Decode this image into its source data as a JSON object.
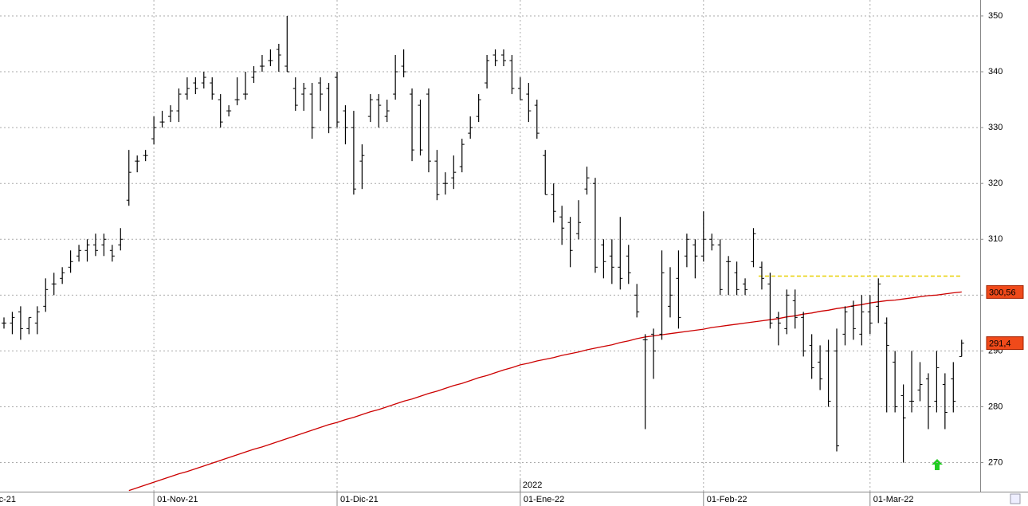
{
  "chart_data": {
    "type": "ohlc",
    "categories": [
      null,
      null,
      null,
      null,
      null,
      null,
      null,
      null,
      null,
      null,
      null,
      null,
      null,
      null,
      null,
      null,
      null,
      null,
      null,
      null,
      null,
      null,
      null,
      null,
      null,
      null,
      null,
      null,
      null,
      null,
      null,
      null,
      null,
      null,
      null,
      null,
      null,
      null,
      null,
      null,
      null,
      null,
      null,
      null,
      null,
      null,
      null,
      null,
      null,
      null,
      null,
      null,
      null,
      null,
      null,
      null,
      null,
      null,
      null,
      null,
      null,
      null,
      null,
      null,
      null,
      null,
      null,
      null,
      null,
      null,
      null,
      null,
      null,
      null,
      null,
      null,
      null,
      null,
      null,
      null,
      null,
      null,
      null,
      null,
      null,
      null,
      null,
      null,
      null,
      null,
      null,
      null,
      null,
      null,
      null,
      null,
      null,
      null,
      null,
      null,
      null,
      null,
      null,
      null,
      null,
      null,
      null,
      null,
      null,
      null,
      null,
      null,
      null,
      null,
      null,
      null
    ],
    "open": [
      295,
      295,
      297,
      294,
      295,
      298,
      302,
      303,
      305,
      307,
      308,
      309,
      309,
      308,
      309,
      317,
      324,
      325,
      328,
      331,
      332,
      333,
      336,
      338,
      338,
      338,
      335,
      333,
      335,
      336,
      339,
      341,
      342,
      344,
      341,
      337,
      336,
      336,
      338,
      337,
      339,
      333,
      330,
      324,
      332,
      335,
      332,
      336,
      341,
      336,
      334,
      336,
      324,
      320,
      321,
      323,
      329,
      332,
      338,
      343,
      343,
      342,
      337,
      336,
      334,
      325,
      318,
      314,
      313,
      311,
      319,
      320,
      309,
      307,
      305,
      307,
      300,
      292,
      293,
      293,
      298,
      303,
      307,
      309,
      307,
      310,
      309,
      306,
      304,
      302,
      306,
      305,
      302,
      296,
      294,
      299,
      296,
      291,
      288,
      290,
      290,
      293,
      298,
      293,
      297,
      298,
      295,
      288,
      282,
      281,
      283,
      285,
      281,
      284,
      285,
      289
    ],
    "high": [
      296,
      297,
      298,
      296,
      298,
      303,
      304,
      305,
      308,
      309,
      310,
      311,
      311,
      309,
      312,
      326,
      325,
      326,
      332,
      333,
      334,
      337,
      339,
      339,
      340,
      339,
      336,
      334,
      339,
      340,
      341,
      343,
      344,
      345,
      350,
      339,
      338,
      338,
      339,
      338,
      340,
      334,
      333,
      327,
      336,
      336,
      335,
      343,
      344,
      337,
      335,
      337,
      326,
      322,
      325,
      328,
      332,
      336,
      343,
      344,
      344,
      343,
      339,
      338,
      335,
      326,
      320,
      316,
      314,
      317,
      323,
      321,
      310,
      310,
      314,
      309,
      302,
      293,
      294,
      308,
      305,
      308,
      311,
      310,
      315,
      311,
      310,
      307,
      306,
      303,
      312,
      306,
      304,
      297,
      301,
      301,
      297,
      293,
      291,
      292,
      294,
      298,
      299,
      300,
      300,
      303,
      296,
      290,
      284,
      290,
      288,
      286,
      290,
      286,
      288,
      292
    ],
    "low": [
      294,
      293,
      292,
      293,
      293,
      297,
      300,
      302,
      304,
      306,
      306,
      307,
      307,
      306,
      308,
      316,
      322,
      324,
      327,
      330,
      331,
      331,
      335,
      336,
      337,
      335,
      330,
      332,
      334,
      335,
      338,
      340,
      341,
      340,
      340,
      333,
      333,
      328,
      333,
      329,
      330,
      327,
      318,
      319,
      331,
      330,
      331,
      335,
      339,
      324,
      325,
      322,
      317,
      318,
      319,
      322,
      328,
      331,
      337,
      341,
      341,
      336,
      335,
      331,
      328,
      318,
      313,
      309,
      305,
      310,
      318,
      304,
      303,
      302,
      301,
      302,
      296,
      276,
      285,
      292,
      296,
      294,
      305,
      303,
      306,
      308,
      300,
      300,
      300,
      300,
      305,
      301,
      294,
      291,
      293,
      294,
      289,
      285,
      283,
      280,
      272,
      291,
      292,
      291,
      293,
      295,
      279,
      279,
      270,
      279,
      281,
      276,
      279,
      276,
      279,
      289
    ],
    "close": [
      295,
      296,
      294,
      296,
      297,
      301,
      302,
      304,
      306,
      308,
      309,
      308,
      310,
      307,
      310,
      322,
      324,
      325,
      330,
      331,
      333,
      336,
      337,
      337,
      339,
      336,
      331,
      333,
      335,
      336,
      340,
      341,
      342,
      343,
      340,
      334,
      337,
      330,
      336,
      330,
      331,
      330,
      319,
      325,
      335,
      334,
      333,
      340,
      340,
      326,
      326,
      324,
      318,
      320,
      322,
      327,
      330,
      335,
      342,
      342,
      342,
      337,
      335,
      333,
      329,
      318,
      315,
      312,
      308,
      313,
      321,
      305,
      306,
      305,
      303,
      304,
      297,
      292,
      290,
      304,
      300,
      296,
      310,
      307,
      310,
      309,
      301,
      306,
      301,
      301,
      311,
      303,
      295,
      295,
      300,
      296,
      290,
      287,
      285,
      281,
      273,
      297,
      294,
      297,
      295,
      302,
      291,
      280,
      278,
      281,
      284,
      280,
      287,
      279,
      281,
      291.4
    ],
    "color": "#000000",
    "ma": {
      "color": "#cc0000",
      "values": [
        null,
        null,
        null,
        null,
        null,
        null,
        null,
        null,
        null,
        null,
        null,
        null,
        null,
        null,
        null,
        265.0,
        265.5,
        266.0,
        266.5,
        267.0,
        267.5,
        268.0,
        268.4,
        268.9,
        269.4,
        269.9,
        270.4,
        270.9,
        271.4,
        271.9,
        272.4,
        272.8,
        273.3,
        273.8,
        274.3,
        274.8,
        275.3,
        275.8,
        276.3,
        276.8,
        277.2,
        277.7,
        278.1,
        278.6,
        279.1,
        279.5,
        280.0,
        280.5,
        281.0,
        281.4,
        281.9,
        282.4,
        282.8,
        283.3,
        283.8,
        284.2,
        284.7,
        285.2,
        285.6,
        286.1,
        286.6,
        287.0,
        287.5,
        287.8,
        288.2,
        288.5,
        288.8,
        289.2,
        289.5,
        289.8,
        290.2,
        290.5,
        290.8,
        291.1,
        291.5,
        291.8,
        292.2,
        292.5,
        292.7,
        292.9,
        293.1,
        293.3,
        293.5,
        293.7,
        293.9,
        294.2,
        294.4,
        294.6,
        294.8,
        295.0,
        295.2,
        295.4,
        295.6,
        295.8,
        296.1,
        296.3,
        296.6,
        296.8,
        297.1,
        297.3,
        297.6,
        297.8,
        298.1,
        298.3,
        298.6,
        298.8,
        299.0,
        299.1,
        299.3,
        299.5,
        299.7,
        299.9,
        300.0,
        300.2,
        300.4,
        300.56
      ]
    },
    "hline": {
      "value": 303.4,
      "from": 91,
      "to": 115,
      "color": "#e8d000"
    },
    "price_tags": [
      {
        "value": 300.56,
        "label": "300,56"
      },
      {
        "value": 291.4,
        "label": "291,4"
      }
    ],
    "ylim": [
      264.8,
      352.85
    ],
    "yticks": [
      270,
      280,
      290,
      300,
      310,
      320,
      330,
      340,
      350
    ],
    "xticks": [
      {
        "value": -1,
        "label": "c-21"
      },
      {
        "value": 18,
        "label": "01-Nov-21"
      },
      {
        "value": 40,
        "label": "01-Dic-21"
      },
      {
        "value": 62,
        "label": "01-Ene-22"
      },
      {
        "value": 84,
        "label": "01-Feb-22"
      },
      {
        "value": 104,
        "label": "01-Mar-22"
      }
    ],
    "year_label": {
      "value": 62,
      "label": "2022"
    },
    "grid": true
  }
}
